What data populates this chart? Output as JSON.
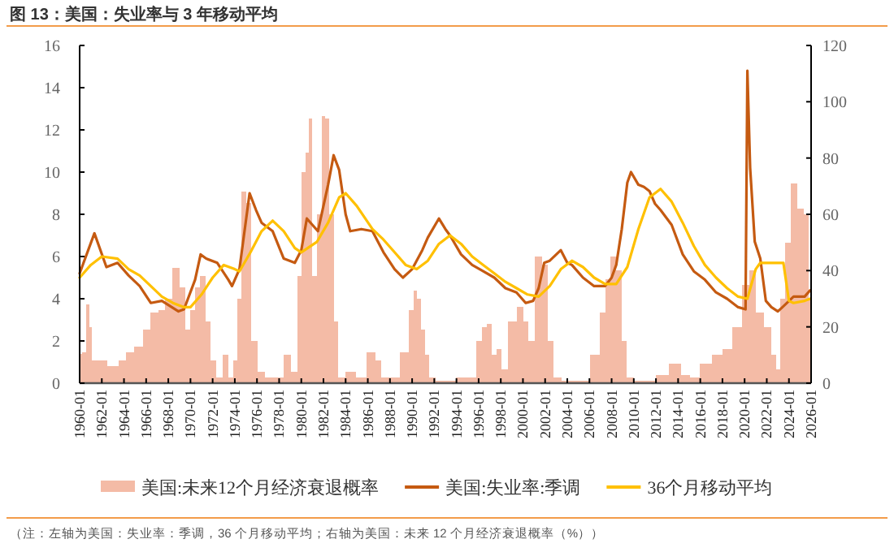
{
  "chart_data": {
    "type": "line",
    "title": "图 13：美国：失业率与 3 年移动平均",
    "annotations": [
      "（注：左轴为美国：失业率：季调，36 个月移动平均；右轴为美国：未来 12 个月经济衰退概率（%））"
    ],
    "xlim": [
      "1960-01",
      "2026-01"
    ],
    "xticks": [
      "1960-01",
      "1962-01",
      "1964-01",
      "1966-01",
      "1968-01",
      "1970-01",
      "1972-01",
      "1974-01",
      "1976-01",
      "1978-01",
      "1980-01",
      "1982-01",
      "1984-01",
      "1986-01",
      "1988-01",
      "1990-01",
      "1992-01",
      "1994-01",
      "1996-01",
      "1998-01",
      "2000-01",
      "2002-01",
      "2004-01",
      "2006-01",
      "2008-01",
      "2010-01",
      "2012-01",
      "2014-01",
      "2016-01",
      "2018-01",
      "2020-01",
      "2022-01",
      "2024-01",
      "2026-01"
    ],
    "ylim": [
      0,
      16
    ],
    "yticks": [
      0,
      2,
      4,
      6,
      8,
      10,
      12,
      14,
      16
    ],
    "y2lim": [
      0,
      120
    ],
    "y2ticks": [
      0,
      20,
      40,
      60,
      80,
      100,
      120
    ],
    "legend": "bottom",
    "grid": false,
    "series": [
      {
        "name": "美国:未来12个月经济衰退概率",
        "type": "bar",
        "axis": "y2",
        "color": "#f4bba6",
        "x": [
          "1960-01",
          "1960-06",
          "1960-10",
          "1961-01",
          "1961-04",
          "1962-01",
          "1963-01",
          "1964-01",
          "1964-06",
          "1965-06",
          "1966-01",
          "1966-10",
          "1967-06",
          "1968-01",
          "1968-10",
          "1969-04",
          "1969-10",
          "1970-04",
          "1970-08",
          "1971-02",
          "1971-08",
          "1972-02",
          "1972-07",
          "1973-04",
          "1973-08",
          "1974-02",
          "1974-06",
          "1974-11",
          "1975-04",
          "1975-10",
          "1976-06",
          "1977-01",
          "1978-01",
          "1978-10",
          "1979-06",
          "1979-11",
          "1980-04",
          "1980-07",
          "1980-11",
          "1981-03",
          "1981-09",
          "1982-01",
          "1982-05",
          "1982-10",
          "1983-03",
          "1983-07",
          "1984-06",
          "1985-06",
          "1986-06",
          "1987-01",
          "1987-06",
          "1988-06",
          "1989-06",
          "1990-01",
          "1990-04",
          "1990-08",
          "1991-01",
          "1991-05",
          "1991-10",
          "1992-06",
          "1993-06",
          "1994-06",
          "1995-06",
          "1996-03",
          "1996-06",
          "1997-01",
          "1997-06",
          "1997-11",
          "1998-05",
          "1999-01",
          "1999-11",
          "2000-04",
          "2000-09",
          "2001-07",
          "2002-01",
          "2002-07",
          "2003-01",
          "2004-01",
          "2005-06",
          "2006-09",
          "2007-03",
          "2007-09",
          "2008-03",
          "2008-09",
          "2009-03",
          "2009-08",
          "2010-06",
          "2011-06",
          "2012-08",
          "2013-10",
          "2014-10",
          "2015-06",
          "2016-06",
          "2017-09",
          "2018-06",
          "2019-06",
          "2020-03",
          "2020-09",
          "2021-05",
          "2022-03",
          "2022-09",
          "2023-01",
          "2023-06",
          "2023-11",
          "2024-07",
          "2025-01",
          "2025-09",
          "2025-12"
        ],
        "values": [
          10.5,
          11,
          28,
          20,
          8,
          8,
          6,
          8,
          11,
          13,
          19,
          25,
          26,
          30,
          41,
          34,
          19,
          26,
          34,
          38,
          22,
          8,
          2,
          10,
          2,
          8,
          30,
          68,
          64,
          15,
          4,
          2,
          2,
          10,
          4,
          38,
          75,
          82,
          94,
          38,
          60,
          95,
          94,
          60,
          22,
          2,
          4,
          2,
          11,
          8,
          2,
          2,
          11,
          26,
          33,
          30,
          19,
          10,
          2,
          1,
          1,
          2,
          2,
          15,
          20,
          21,
          10,
          12,
          5,
          22,
          27,
          22,
          15,
          45,
          42,
          15,
          2,
          1,
          1,
          10,
          25,
          37,
          45,
          40,
          15,
          2,
          1,
          1,
          3,
          7,
          3,
          2,
          7,
          10,
          12,
          20,
          35,
          40,
          25,
          20,
          10,
          5,
          30,
          50,
          71,
          62,
          60,
          30
        ]
      },
      {
        "name": "美国:失业率:季调",
        "color": "#c55a11",
        "x": [
          "1960-01",
          "1961-05",
          "1962-06",
          "1963-06",
          "1964-06",
          "1965-06",
          "1966-06",
          "1967-06",
          "1968-12",
          "1969-06",
          "1970-06",
          "1970-12",
          "1971-06",
          "1972-06",
          "1973-06",
          "1973-10",
          "1974-06",
          "1975-05",
          "1975-12",
          "1976-06",
          "1977-06",
          "1978-06",
          "1979-06",
          "1980-01",
          "1980-07",
          "1981-01",
          "1981-07",
          "1982-06",
          "1982-12",
          "1983-06",
          "1984-01",
          "1984-06",
          "1985-06",
          "1986-06",
          "1987-06",
          "1988-06",
          "1989-03",
          "1990-01",
          "1990-12",
          "1991-06",
          "1992-06",
          "1993-01",
          "1993-06",
          "1994-06",
          "1995-06",
          "1996-06",
          "1997-06",
          "1998-06",
          "1999-06",
          "2000-04",
          "2000-12",
          "2001-06",
          "2001-12",
          "2002-06",
          "2003-06",
          "2004-01",
          "2004-06",
          "2005-06",
          "2006-06",
          "2007-06",
          "2008-01",
          "2008-06",
          "2008-12",
          "2009-06",
          "2009-10",
          "2010-06",
          "2010-12",
          "2011-06",
          "2011-12",
          "2012-06",
          "2013-06",
          "2014-06",
          "2015-06",
          "2016-06",
          "2017-06",
          "2018-06",
          "2019-06",
          "2020-02",
          "2020-04",
          "2020-07",
          "2020-12",
          "2021-06",
          "2021-12",
          "2022-06",
          "2023-01",
          "2023-06",
          "2024-06",
          "2025-06",
          "2025-12"
        ],
        "values": [
          5.2,
          7.1,
          5.5,
          5.7,
          5.1,
          4.6,
          3.8,
          3.9,
          3.4,
          3.5,
          4.9,
          6.1,
          5.9,
          5.7,
          4.9,
          4.6,
          5.4,
          9.0,
          8.2,
          7.6,
          7.2,
          5.9,
          5.7,
          6.3,
          7.8,
          7.5,
          7.2,
          9.4,
          10.8,
          10.1,
          8.0,
          7.2,
          7.3,
          7.2,
          6.2,
          5.4,
          5.0,
          5.4,
          6.3,
          6.9,
          7.8,
          7.3,
          7.0,
          6.1,
          5.6,
          5.3,
          5.0,
          4.5,
          4.3,
          3.8,
          3.9,
          4.5,
          5.7,
          5.8,
          6.3,
          5.7,
          5.6,
          5.0,
          4.6,
          4.6,
          5.0,
          5.6,
          7.3,
          9.5,
          10.0,
          9.4,
          9.3,
          9.1,
          8.5,
          8.2,
          7.5,
          6.1,
          5.3,
          4.9,
          4.3,
          4.0,
          3.6,
          3.5,
          14.8,
          10.2,
          6.7,
          5.9,
          3.9,
          3.6,
          3.4,
          3.6,
          4.1,
          4.1,
          4.4
        ]
      },
      {
        "name": "36个月移动平均",
        "color": "#ffc000",
        "x": [
          "1960-01",
          "1961-01",
          "1962-01",
          "1963-06",
          "1964-06",
          "1965-06",
          "1966-06",
          "1967-06",
          "1968-06",
          "1969-06",
          "1970-01",
          "1971-01",
          "1972-01",
          "1973-01",
          "1974-01",
          "1974-06",
          "1975-06",
          "1976-06",
          "1977-06",
          "1978-06",
          "1979-06",
          "1980-01",
          "1981-06",
          "1982-06",
          "1983-06",
          "1984-01",
          "1985-01",
          "1986-06",
          "1987-06",
          "1988-06",
          "1989-06",
          "1990-06",
          "1991-06",
          "1992-06",
          "1993-06",
          "1994-06",
          "1995-06",
          "1996-06",
          "1997-06",
          "1998-06",
          "1999-06",
          "2000-06",
          "2001-06",
          "2002-06",
          "2003-06",
          "2004-06",
          "2005-06",
          "2006-06",
          "2007-06",
          "2008-06",
          "2009-06",
          "2010-06",
          "2011-06",
          "2012-06",
          "2013-06",
          "2014-06",
          "2015-06",
          "2016-06",
          "2017-06",
          "2018-06",
          "2019-06",
          "2020-04",
          "2021-01",
          "2021-06",
          "2023-07",
          "2024-01",
          "2024-06",
          "2025-06",
          "2025-12"
        ],
        "values": [
          5.0,
          5.6,
          6.0,
          5.9,
          5.4,
          5.1,
          4.6,
          4.1,
          3.8,
          3.6,
          3.6,
          4.2,
          5.0,
          5.6,
          5.4,
          5.3,
          6.2,
          7.2,
          7.7,
          7.2,
          6.4,
          6.2,
          6.7,
          7.6,
          8.8,
          9.0,
          8.4,
          7.3,
          6.8,
          6.2,
          5.6,
          5.4,
          5.8,
          6.6,
          7.0,
          6.6,
          6.0,
          5.6,
          5.2,
          4.8,
          4.5,
          4.2,
          4.1,
          4.6,
          5.4,
          5.8,
          5.5,
          5.0,
          4.7,
          4.7,
          5.5,
          7.3,
          8.8,
          9.2,
          8.6,
          7.6,
          6.5,
          5.6,
          5.0,
          4.5,
          4.1,
          4.0,
          5.4,
          5.7,
          5.7,
          3.9,
          3.8,
          3.9,
          4.0
        ]
      }
    ]
  }
}
